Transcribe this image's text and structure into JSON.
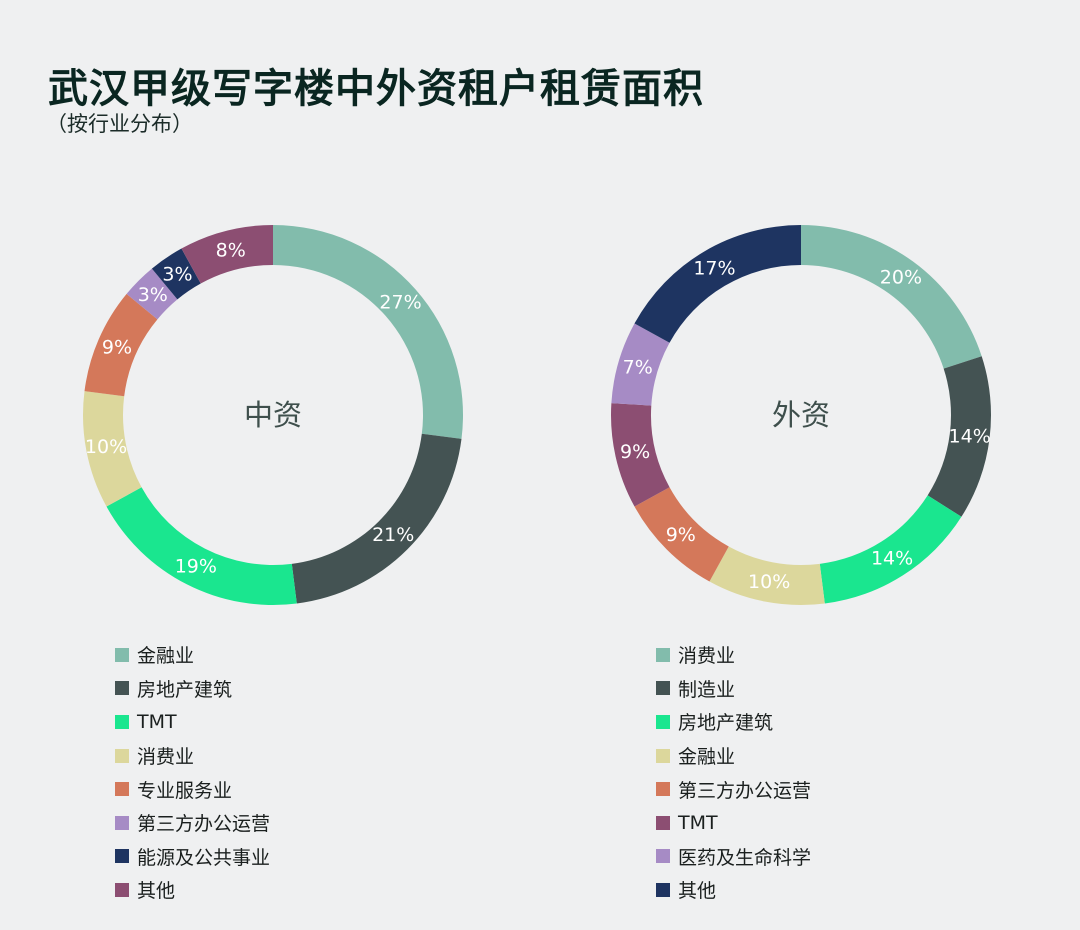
{
  "title": "武汉甲级写字楼中外资租户租赁面积",
  "subtitle": "（按行业分布）",
  "chart_data": [
    {
      "type": "pie",
      "center_label": "中资",
      "categories": [
        "金融业",
        "房地产建筑",
        "TMT",
        "消费业",
        "专业服务业",
        "第三方办公运营",
        "能源及公共事业",
        "其他"
      ],
      "values": [
        27,
        21,
        19,
        10,
        9,
        3,
        3,
        8
      ],
      "data_labels": [
        "27%",
        "21%",
        "19%",
        "10%",
        "9%",
        "3%",
        "3%",
        "8%"
      ],
      "colors": [
        "#82bcac",
        "#445353",
        "#1ae68f",
        "#dcd79c",
        "#d4785a",
        "#a68bc5",
        "#1e3461",
        "#8c4e72"
      ],
      "label_colors": [
        "#ffffff",
        "#ffffff",
        "#ffffff",
        "#ffffff",
        "#ffffff",
        "#ffffff",
        "#ffffff",
        "#ffffff"
      ],
      "legend_position": "bottom"
    },
    {
      "type": "pie",
      "center_label": "外资",
      "categories": [
        "消费业",
        "制造业",
        "房地产建筑",
        "金融业",
        "第三方办公运营",
        "TMT",
        "医药及生命科学",
        "其他"
      ],
      "values": [
        20,
        14,
        14,
        10,
        9,
        9,
        7,
        17
      ],
      "data_labels": [
        "20%",
        "14%",
        "14%",
        "10%",
        "9%",
        "9%",
        "7%",
        "17%"
      ],
      "colors": [
        "#82bcac",
        "#445353",
        "#1ae68f",
        "#dcd79c",
        "#d4785a",
        "#8c4e72",
        "#a68bc5",
        "#1e3461"
      ],
      "label_colors": [
        "#ffffff",
        "#ffffff",
        "#ffffff",
        "#ffffff",
        "#ffffff",
        "#ffffff",
        "#ffffff",
        "#ffffff"
      ],
      "legend_position": "bottom"
    }
  ]
}
